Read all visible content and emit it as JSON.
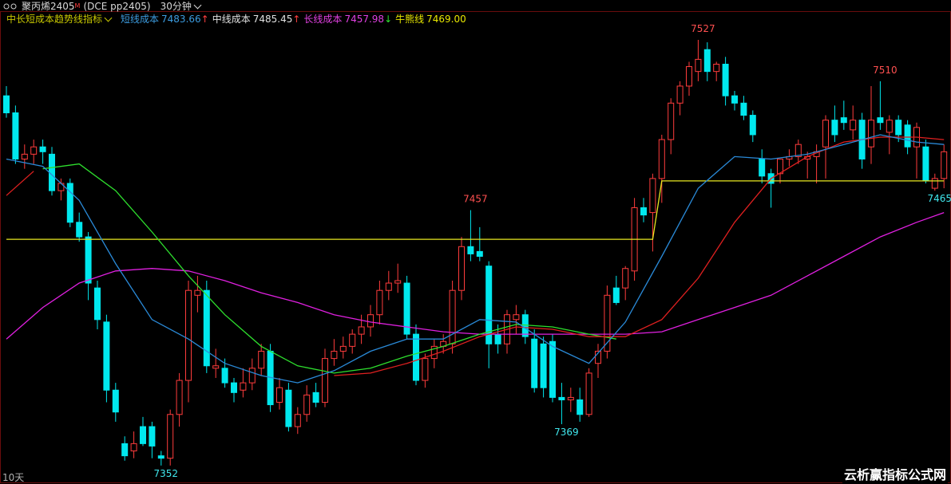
{
  "toolbar": {
    "symbol": "聚丙烯2405",
    "flag": "M",
    "code": "(DCE pp2405)",
    "period": "30分钟"
  },
  "chart_data": {
    "type": "candlestick",
    "indicator": "中长短成本趋势线指标",
    "legend": [
      {
        "name": "短线成本",
        "value_label": "7483.66",
        "arrow": "↑",
        "color": "#3c9ce0",
        "arrow_color": "#ff4040"
      },
      {
        "name": "中线成本",
        "value_label": "7485.45",
        "arrow": "↑",
        "color": "#e0e0e0",
        "arrow_color": "#ff4040"
      },
      {
        "name": "长线成本",
        "value_label": "7457.98",
        "arrow": "↓",
        "color": "#e040e0",
        "arrow_color": "#30e030"
      },
      {
        "name": "牛熊线",
        "value_label": "7469.00",
        "color": "#e8e800"
      }
    ],
    "ylim": [
      7346.7,
      7538.8
    ],
    "up_color": "#ff3c3c",
    "down_color": "#00e8ee",
    "candles": {
      "open": [
        7504,
        7497,
        7478,
        7480,
        7483,
        7480,
        7465,
        7468,
        7452,
        7446,
        7425,
        7411,
        7383,
        7361,
        7358,
        7368,
        7368,
        7356,
        7355,
        7373,
        7387,
        7422,
        7424,
        7392,
        7392,
        7386,
        7383,
        7386,
        7392,
        7399,
        7378,
        7383,
        7368,
        7373,
        7382,
        7378,
        7396,
        7399,
        7401,
        7406,
        7409,
        7414,
        7424,
        7427,
        7427,
        7406,
        7387,
        7396,
        7401,
        7402,
        7424,
        7442,
        7440,
        7434,
        7406,
        7402,
        7412,
        7414,
        7404,
        7402,
        7403,
        7380,
        7379,
        7379,
        7373,
        7394,
        7399,
        7425,
        7425,
        7432,
        7458,
        7456,
        7470,
        7486,
        7501,
        7508,
        7514,
        7523,
        7514,
        7517,
        7504,
        7501,
        7496,
        7478,
        7472,
        7472,
        7478,
        7479,
        7478,
        7479,
        7483,
        7494,
        7495,
        7490,
        7494,
        7483,
        7495,
        7489,
        7494,
        7492,
        7483,
        7483,
        7466,
        7470
      ],
      "high": [
        7508,
        7500,
        7484,
        7486,
        7486,
        7483,
        7470,
        7470,
        7456,
        7448,
        7428,
        7414,
        7386,
        7364,
        7366,
        7372,
        7370,
        7358,
        7375,
        7390,
        7428,
        7430,
        7428,
        7400,
        7396,
        7388,
        7392,
        7396,
        7402,
        7402,
        7388,
        7386,
        7376,
        7385,
        7386,
        7400,
        7404,
        7405,
        7408,
        7414,
        7418,
        7428,
        7432,
        7435,
        7430,
        7410,
        7398,
        7404,
        7406,
        7428,
        7446,
        7457,
        7450,
        7436,
        7410,
        7416,
        7418,
        7416,
        7408,
        7405,
        7406,
        7386,
        7384,
        7384,
        7392,
        7402,
        7426,
        7430,
        7434,
        7462,
        7462,
        7472,
        7488,
        7503,
        7510,
        7518,
        7527,
        7526,
        7518,
        7520,
        7506,
        7504,
        7498,
        7482,
        7474,
        7478,
        7482,
        7486,
        7481,
        7484,
        7496,
        7500,
        7502,
        7500,
        7497,
        7508,
        7510,
        7496,
        7496,
        7494,
        7493,
        7486,
        7472,
        7484
      ],
      "low": [
        7495,
        7476,
        7474,
        7476,
        7476,
        7463,
        7461,
        7450,
        7444,
        7420,
        7408,
        7378,
        7370,
        7354,
        7355,
        7360,
        7355,
        7352,
        7352,
        7368,
        7378,
        7415,
        7390,
        7388,
        7384,
        7378,
        7380,
        7383,
        7389,
        7374,
        7375,
        7366,
        7365,
        7370,
        7376,
        7376,
        7393,
        7396,
        7398,
        7402,
        7405,
        7410,
        7420,
        7423,
        7404,
        7385,
        7384,
        7392,
        7398,
        7398,
        7420,
        7436,
        7436,
        7392,
        7398,
        7398,
        7406,
        7402,
        7382,
        7380,
        7378,
        7369,
        7374,
        7370,
        7372,
        7388,
        7396,
        7418,
        7420,
        7428,
        7452,
        7440,
        7460,
        7480,
        7496,
        7504,
        7510,
        7510,
        7510,
        7500,
        7498,
        7494,
        7485,
        7468,
        7458,
        7468,
        7475,
        7476,
        7470,
        7468,
        7470,
        7485,
        7490,
        7486,
        7474,
        7476,
        7490,
        7480,
        7485,
        7480,
        7470,
        7468,
        7465,
        7466
      ],
      "close": [
        7497,
        7478,
        7480,
        7483,
        7481,
        7465,
        7468,
        7452,
        7446,
        7427,
        7412,
        7383,
        7374,
        7356,
        7361,
        7361,
        7360,
        7355,
        7373,
        7387,
        7424,
        7424,
        7393,
        7393,
        7386,
        7382,
        7386,
        7392,
        7399,
        7377,
        7384,
        7368,
        7373,
        7381,
        7378,
        7396,
        7399,
        7401,
        7406,
        7409,
        7414,
        7424,
        7427,
        7428,
        7406,
        7387,
        7396,
        7401,
        7403,
        7424,
        7442,
        7439,
        7438,
        7402,
        7402,
        7414,
        7414,
        7405,
        7384,
        7384,
        7380,
        7379,
        7380,
        7373,
        7390,
        7399,
        7422,
        7419,
        7433,
        7458,
        7455,
        7470,
        7486,
        7501,
        7508,
        7516,
        7519,
        7514,
        7517,
        7504,
        7501,
        7496,
        7488,
        7471,
        7468,
        7478,
        7479,
        7484,
        7479,
        7481,
        7494,
        7488,
        7493,
        7494,
        7478,
        7494,
        7493,
        7494,
        7488,
        7483,
        7491,
        7469,
        7470,
        7481
      ]
    },
    "lines": [
      {
        "color": "#e8e820",
        "x": [
          0,
          71,
          72,
          103
        ],
        "values": [
          7445,
          7445,
          7469,
          7469
        ]
      },
      {
        "color": "#e020e0",
        "x": [
          0,
          4,
          8,
          12,
          16,
          20,
          24,
          28,
          32,
          36,
          40,
          44,
          48,
          52,
          56,
          60,
          64,
          68,
          72,
          76,
          80,
          84,
          88,
          92,
          96,
          100,
          103
        ],
        "values": [
          7404,
          7417,
          7427,
          7432,
          7433,
          7432,
          7428,
          7423,
          7419,
          7414,
          7411,
          7409,
          7407,
          7406,
          7406,
          7406,
          7406,
          7406,
          7407,
          7412,
          7417,
          7422,
          7430,
          7438,
          7446,
          7452,
          7456
        ]
      },
      {
        "color": "#2ee02e",
        "x": [
          4,
          8,
          12,
          16,
          20,
          24,
          28,
          32,
          36,
          40,
          44,
          48,
          52,
          56,
          60,
          64,
          67
        ],
        "values": [
          7474,
          7476,
          7465,
          7448,
          7430,
          7414,
          7401,
          7393,
          7390,
          7392,
          7397,
          7401,
          7406,
          7410,
          7409,
          7406,
          7404
        ]
      },
      {
        "color": "#e02020",
        "x": [
          0,
          3,
          20,
          36,
          40,
          44,
          48,
          52,
          56,
          60,
          64,
          68,
          72,
          76,
          80,
          84,
          88,
          92,
          96,
          100,
          103
        ],
        "values": [
          7463,
          7473,
          null,
          7389,
          7390,
          7394,
          7399,
          7405,
          7409,
          7408,
          7405,
          7405,
          7412,
          7429,
          7452,
          7470,
          7479,
          7485,
          7487,
          7487,
          7486
        ]
      },
      {
        "color": "#2a8ad8",
        "x": [
          0,
          4,
          8,
          12,
          16,
          20,
          24,
          28,
          32,
          36,
          40,
          44,
          48,
          52,
          56,
          60,
          64,
          68,
          72,
          76,
          80,
          84,
          88,
          92,
          96,
          100,
          103
        ],
        "values": [
          7478,
          7475,
          7461,
          7435,
          7412,
          7404,
          7394,
          7389,
          7386,
          7391,
          7399,
          7404,
          7404,
          7412,
          7411,
          7401,
          7394,
          7411,
          7438,
          7466,
          7479,
          7478,
          7480,
          7484,
          7488,
          7485,
          7484
        ]
      }
    ],
    "extremes": [
      {
        "index": 76,
        "value": 7527,
        "side": "high"
      },
      {
        "index": 96,
        "value": 7510,
        "side": "high"
      },
      {
        "index": 51,
        "value": 7457,
        "side": "high"
      },
      {
        "index": 61,
        "value": 7369,
        "side": "low"
      },
      {
        "index": 17,
        "value": 7352,
        "side": "low"
      },
      {
        "index": 102,
        "value": 7465,
        "side": "low"
      }
    ],
    "high_color": "#ff5050",
    "low_color": "#40e8ee",
    "period_label": "10天"
  },
  "watermark": "云析赢指标公式网"
}
